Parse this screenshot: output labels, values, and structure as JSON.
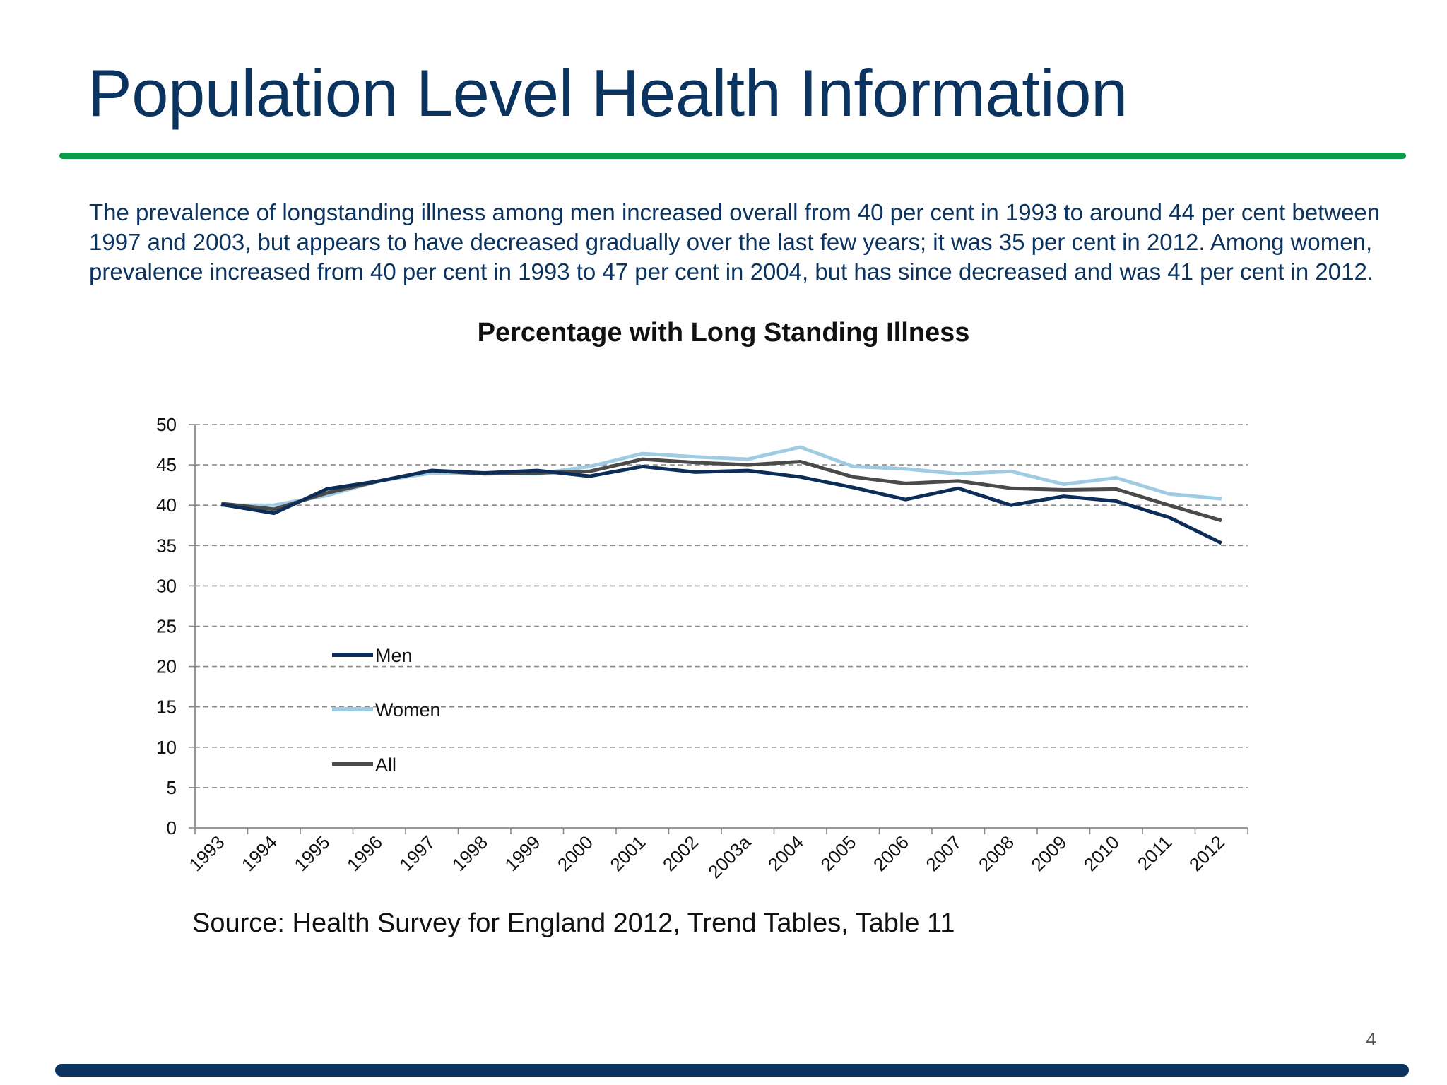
{
  "slide": {
    "title": "Population Level Health Information",
    "paragraph": "The prevalence of longstanding illness among men increased overall from 40 per cent in 1993 to around 44 per cent between 1997 and 2003, but appears to have decreased gradually over the last few years; it was 35 per cent in 2012. Among women, prevalence increased from 40 per cent in 1993 to 47 per cent in 2004, but has since decreased and was 41 per cent in 2012.",
    "source": "Source:  Health Survey for England 2012, Trend Tables, Table 11",
    "page_number": "4"
  },
  "colors": {
    "title": "#0b3360",
    "green_rule": "#0a9a4a",
    "navy_rule": "#0b3360"
  },
  "chart_data": {
    "type": "line",
    "title": "Percentage with Long Standing Illness",
    "xlabel": "",
    "ylabel": "",
    "categories": [
      "1993",
      "1994",
      "1995",
      "1996",
      "1997",
      "1998",
      "1999",
      "2000",
      "2001",
      "2002",
      "2003a",
      "2004",
      "2005",
      "2006",
      "2007",
      "2008",
      "2009",
      "2010",
      "2011",
      "2012"
    ],
    "ylim": [
      0,
      50
    ],
    "yticks": [
      0,
      5,
      10,
      15,
      20,
      25,
      30,
      35,
      40,
      45,
      50
    ],
    "grid": "horizontal dashed",
    "legend_position": "inside-left",
    "series": [
      {
        "name": "Men",
        "color": "#0c2d57",
        "values": [
          40.1,
          39.0,
          42.0,
          43.0,
          44.3,
          44.0,
          44.3,
          43.6,
          44.8,
          44.1,
          44.3,
          43.5,
          42.2,
          40.7,
          42.1,
          40.0,
          41.1,
          40.5,
          38.5,
          35.3
        ]
      },
      {
        "name": "Women",
        "color": "#9fcbe3",
        "values": [
          40.0,
          40.0,
          41.2,
          43.0,
          44.0,
          44.0,
          43.9,
          44.8,
          46.4,
          46.0,
          45.7,
          47.2,
          44.8,
          44.5,
          43.9,
          44.2,
          42.6,
          43.4,
          41.4,
          40.8
        ]
      },
      {
        "name": "All",
        "color": "#4a4a4a",
        "values": [
          40.2,
          39.5,
          41.5,
          43.0,
          44.3,
          43.9,
          44.0,
          44.2,
          45.7,
          45.3,
          45.0,
          45.4,
          43.5,
          42.7,
          43.0,
          42.1,
          41.9,
          42.0,
          40.0,
          38.1
        ]
      }
    ]
  }
}
